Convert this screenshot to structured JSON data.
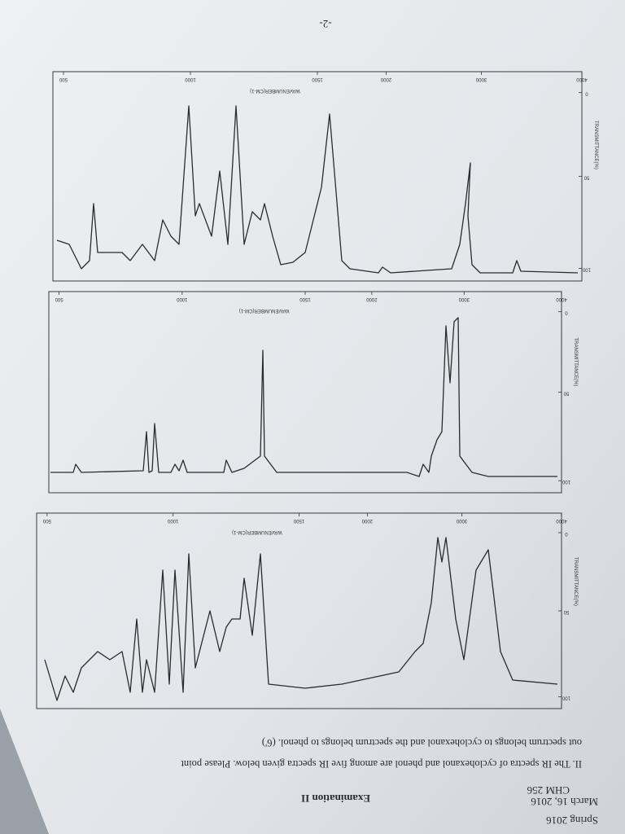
{
  "page_number": "-2-",
  "header": {
    "course": "CHM 256",
    "exam": "Examination II",
    "term": "Spring 2016",
    "date": "March 16, 2016"
  },
  "question": {
    "lines": [
      "II. The IR spectra of cyclohexanol and phenol are among five IR spectra given below. Please point",
      "out spectrum belongs to cyclohexanol and the spectrum belongs to phenol. (6')"
    ]
  },
  "spectra": [
    {
      "x_title": "WAVENUMBER(CM-1)",
      "y_title": "TRANSMITTANCE(%)",
      "x_labels": [
        "4000",
        "3000",
        "2000",
        "1500",
        "1000",
        "500"
      ],
      "y_labels": [
        "0",
        "50",
        "100"
      ]
    },
    {
      "x_title": "WAVENUMBER(CM-1)",
      "y_title": "TRANSMITTANCE(%)",
      "x_labels": [
        "4000",
        "3000",
        "2000",
        "1500",
        "1000",
        "500"
      ],
      "y_labels": [
        "0",
        "50",
        "100"
      ]
    },
    {
      "x_title": "WAVENUMBER(CM-1)",
      "y_title": "TRANSMITTANCE(%)",
      "x_labels": [
        "4000",
        "3000",
        "2000",
        "1500",
        "1000",
        "500"
      ],
      "y_labels": [
        "0",
        "50",
        "100"
      ]
    }
  ]
}
